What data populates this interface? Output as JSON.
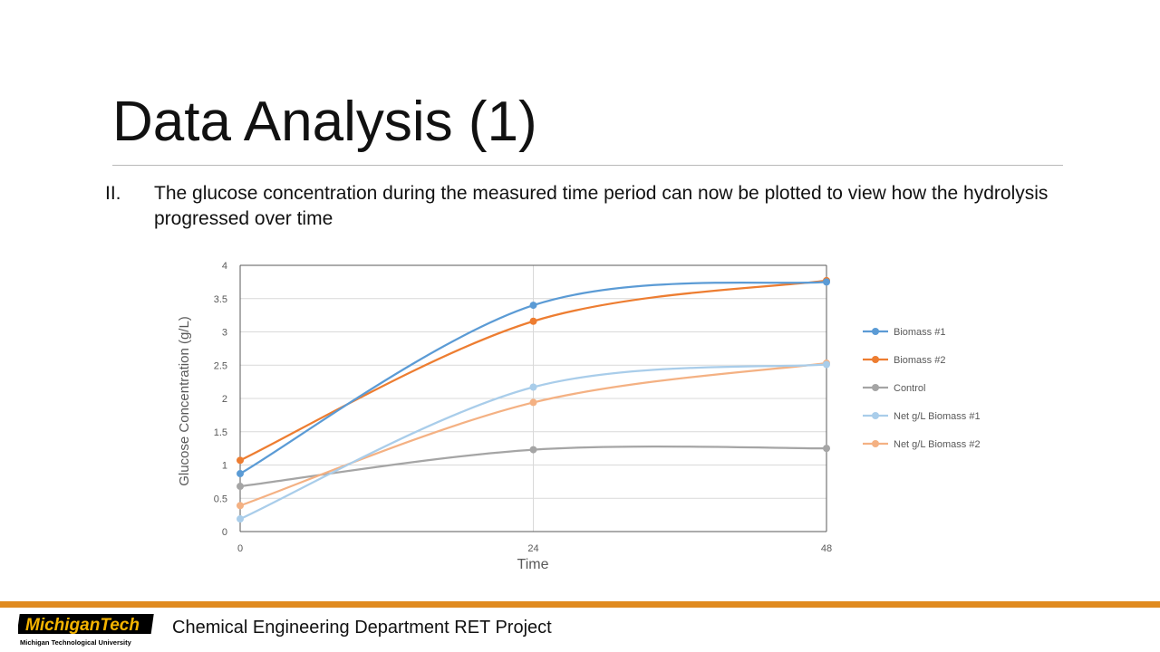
{
  "slide": {
    "title": "Data Analysis (1)",
    "bullet_number": "II.",
    "bullet_text": "The glucose concentration during the measured time period can now be plotted to view how the hydrolysis progressed over time"
  },
  "footer": {
    "logo_main": "MichiganTech",
    "logo_sub": "Michigan Technological University",
    "text": "Chemical Engineering Department RET Project",
    "accent_color": "#e08a1e"
  },
  "chart_data": {
    "type": "line",
    "xlabel": "Time",
    "ylabel": "Glucose Concentration (g/L)",
    "x": [
      0,
      24,
      48
    ],
    "x_ticks": [
      "0",
      "24",
      "48"
    ],
    "y_ticks": [
      "0",
      "0.5",
      "1",
      "1.5",
      "2",
      "2.5",
      "3",
      "3.5",
      "4"
    ],
    "ylim": [
      0,
      4
    ],
    "xlim": [
      0,
      48
    ],
    "grid": "on",
    "legend_position": "right",
    "smooth": true,
    "series": [
      {
        "name": "Biomass #1",
        "color": "#5b9bd5",
        "values": [
          0.87,
          3.4,
          3.75
        ]
      },
      {
        "name": "Biomass #2",
        "color": "#ed7d31",
        "values": [
          1.07,
          3.16,
          3.77
        ]
      },
      {
        "name": "Control",
        "color": "#a5a5a5",
        "values": [
          0.68,
          1.23,
          1.25
        ]
      },
      {
        "name": "Net g/L Biomass #1",
        "color": "#a9cdea",
        "values": [
          0.19,
          2.17,
          2.51
        ]
      },
      {
        "name": "Net g/L Biomass #2",
        "color": "#f4b183",
        "values": [
          0.39,
          1.94,
          2.53
        ]
      }
    ]
  }
}
